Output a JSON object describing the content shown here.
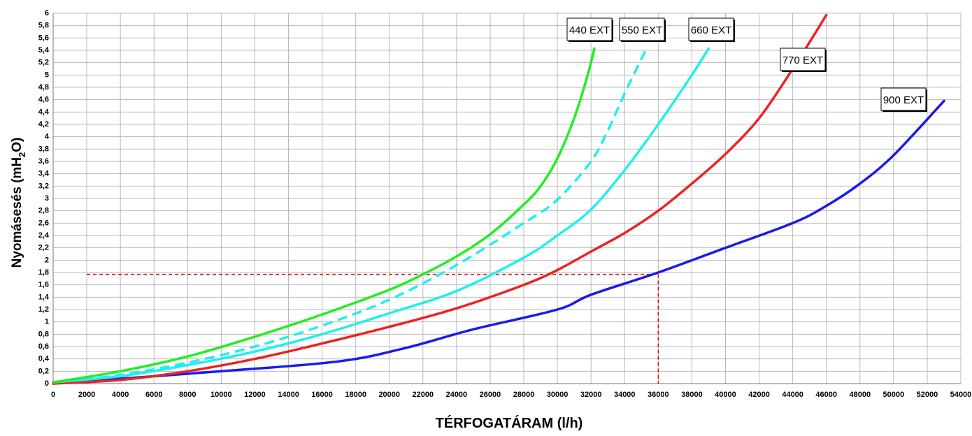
{
  "chart_data": {
    "type": "line",
    "title": "",
    "xlabel": "TÉRFOGATÁRAM (l/h)",
    "ylabel_main": "Nyomásesés (mH",
    "ylabel_sub": "2",
    "ylabel_end": "O)",
    "xlim": [
      0,
      54000
    ],
    "ylim": [
      0,
      6
    ],
    "grid": true,
    "x_ticks": [
      "0",
      "2000",
      "4000",
      "6000",
      "8000",
      "10000",
      "12000",
      "14000",
      "16000",
      "18000",
      "20000",
      "22000",
      "24000",
      "26000",
      "28000",
      "30000",
      "32000",
      "34000",
      "36000",
      "38000",
      "40000",
      "42000",
      "44000",
      "46000",
      "48000",
      "50000",
      "52000",
      "54000"
    ],
    "y_ticks": [
      "0",
      "0,2",
      "0,4",
      "0,6",
      "0,8",
      "1",
      "1,2",
      "1,4",
      "1,6",
      "1,8",
      "2",
      "2,2",
      "2,4",
      "2,6",
      "2,8",
      "3",
      "3,2",
      "3,4",
      "3,6",
      "3,8",
      "4",
      "4,2",
      "4,4",
      "4,6",
      "4,8",
      "5",
      "5,2",
      "5,4",
      "5,6",
      "5,8",
      "6"
    ],
    "series": [
      {
        "name": "440 EXT",
        "color": "#22ee22",
        "dash": false,
        "points": [
          [
            0,
            0.02
          ],
          [
            4000,
            0.2
          ],
          [
            8000,
            0.44
          ],
          [
            12000,
            0.76
          ],
          [
            16000,
            1.12
          ],
          [
            20000,
            1.52
          ],
          [
            22000,
            1.77
          ],
          [
            24000,
            2.06
          ],
          [
            26000,
            2.42
          ],
          [
            28000,
            2.9
          ],
          [
            29000,
            3.2
          ],
          [
            30000,
            3.65
          ],
          [
            31000,
            4.3
          ],
          [
            31800,
            5.0
          ],
          [
            32200,
            5.43
          ]
        ]
      },
      {
        "name": "550 EXT",
        "color": "#22eeee",
        "dash": true,
        "points": [
          [
            0,
            0.02
          ],
          [
            4000,
            0.14
          ],
          [
            8000,
            0.34
          ],
          [
            12000,
            0.6
          ],
          [
            16000,
            0.94
          ],
          [
            20000,
            1.36
          ],
          [
            24000,
            1.92
          ],
          [
            28000,
            2.6
          ],
          [
            30000,
            2.98
          ],
          [
            32000,
            3.6
          ],
          [
            33000,
            4.1
          ],
          [
            34000,
            4.7
          ],
          [
            35300,
            5.43
          ]
        ]
      },
      {
        "name": "660 EXT",
        "color": "#22eeee",
        "dash": false,
        "points": [
          [
            0,
            0.02
          ],
          [
            4000,
            0.12
          ],
          [
            8000,
            0.3
          ],
          [
            12000,
            0.52
          ],
          [
            16000,
            0.8
          ],
          [
            20000,
            1.14
          ],
          [
            24000,
            1.5
          ],
          [
            28000,
            2.04
          ],
          [
            30000,
            2.4
          ],
          [
            32000,
            2.82
          ],
          [
            34000,
            3.46
          ],
          [
            36000,
            4.2
          ],
          [
            38000,
            5.0
          ],
          [
            39000,
            5.43
          ]
        ]
      },
      {
        "name": "770 EXT",
        "color": "#ee2222",
        "dash": false,
        "points": [
          [
            0,
            0.0
          ],
          [
            4000,
            0.06
          ],
          [
            8000,
            0.2
          ],
          [
            12000,
            0.4
          ],
          [
            16000,
            0.65
          ],
          [
            20000,
            0.92
          ],
          [
            24000,
            1.22
          ],
          [
            28000,
            1.6
          ],
          [
            30000,
            1.84
          ],
          [
            32000,
            2.14
          ],
          [
            34000,
            2.44
          ],
          [
            36000,
            2.8
          ],
          [
            38000,
            3.24
          ],
          [
            40000,
            3.72
          ],
          [
            42000,
            4.3
          ],
          [
            44000,
            5.1
          ],
          [
            46000,
            5.97
          ]
        ]
      },
      {
        "name": "900 EXT",
        "color": "#1a1aee",
        "dash": false,
        "points": [
          [
            0,
            0.0
          ],
          [
            5000,
            0.1
          ],
          [
            10000,
            0.2
          ],
          [
            17000,
            0.36
          ],
          [
            21000,
            0.58
          ],
          [
            25000,
            0.88
          ],
          [
            30000,
            1.2
          ],
          [
            32000,
            1.44
          ],
          [
            36000,
            1.8
          ],
          [
            40000,
            2.2
          ],
          [
            44000,
            2.6
          ],
          [
            46000,
            2.88
          ],
          [
            48000,
            3.24
          ],
          [
            50000,
            3.7
          ],
          [
            53000,
            4.58
          ]
        ]
      }
    ],
    "reference_lines": {
      "color": "#dd0000",
      "x": 36000,
      "y": 1.77
    }
  }
}
